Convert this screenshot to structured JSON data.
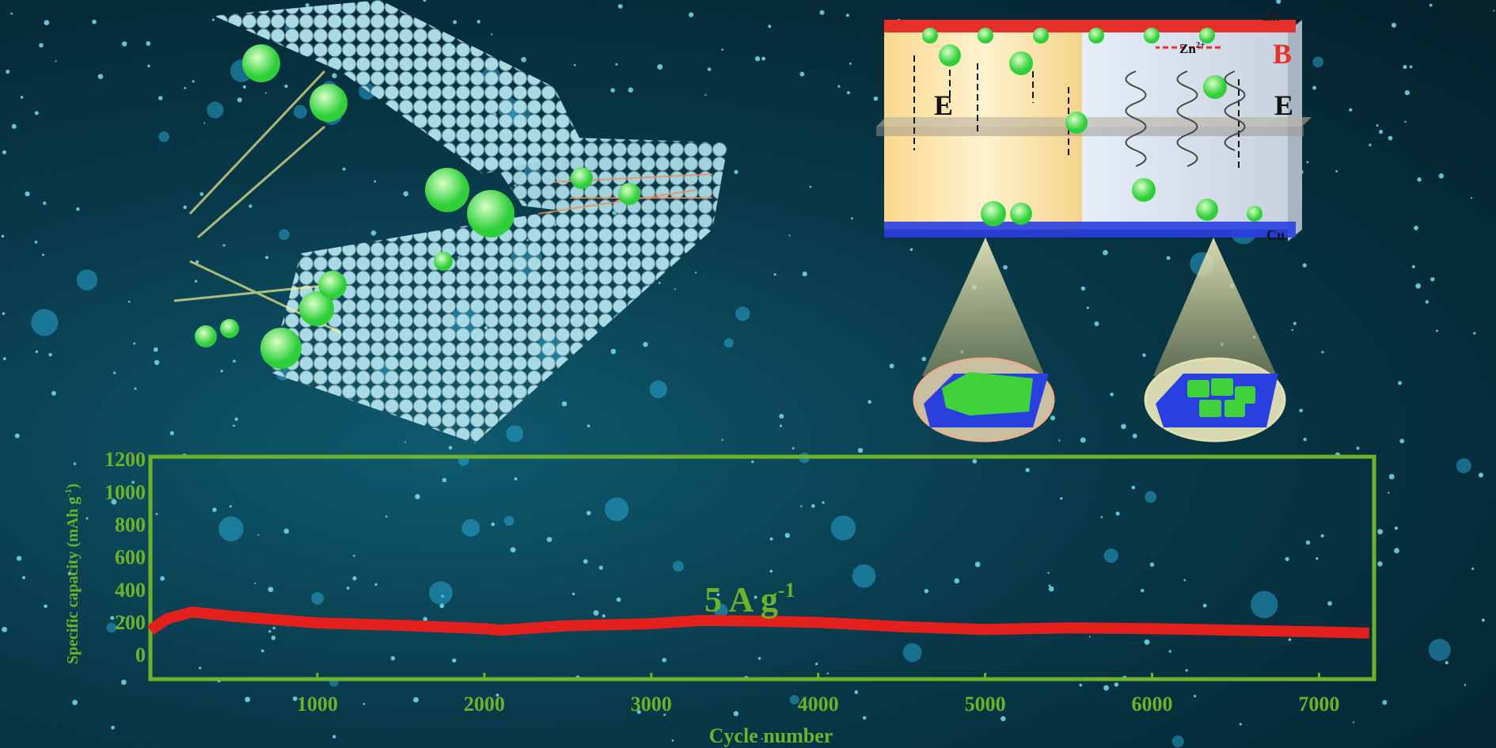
{
  "diagram": {
    "anode_label": "Zn",
    "ion_label": "Zn",
    "ion_charge": "2+",
    "magnetic_field_label": "B",
    "electric_field_label_left": "E",
    "electric_field_label_right": "E",
    "cathode_label": "Cu"
  },
  "colors": {
    "axis": "#6db32a",
    "series": "#e3201b",
    "anode": "#e8302a",
    "cathode": "#2a3fe0",
    "deposit": "#3fd23a"
  },
  "chart_data": {
    "type": "line",
    "title": "",
    "annotation": "5 A g",
    "annotation_sup": "-1",
    "xlabel": "Cycle number",
    "ylabel": "Specific capacity (mAh g",
    "ylabel_sup": "-1",
    "ylabel_end": ")",
    "xlim": [
      0,
      7330
    ],
    "ylim": [
      -150,
      1215
    ],
    "xticks": [
      "1000",
      "2000",
      "3000",
      "4000",
      "5000",
      "6000",
      "7000"
    ],
    "yticks": [
      "0",
      "200",
      "400",
      "600",
      "800",
      "1000",
      "1200"
    ],
    "grid": false,
    "series": [
      {
        "x": [
          0,
          100,
          250,
          500,
          1000,
          1500,
          2000,
          2100,
          2500,
          3000,
          3300,
          3700,
          4000,
          4500,
          5000,
          5500,
          6000,
          6500,
          7000,
          7300
        ],
        "values": [
          150,
          220,
          262,
          235,
          195,
          180,
          160,
          150,
          178,
          190,
          210,
          205,
          198,
          172,
          155,
          165,
          160,
          150,
          140,
          132
        ]
      }
    ]
  }
}
